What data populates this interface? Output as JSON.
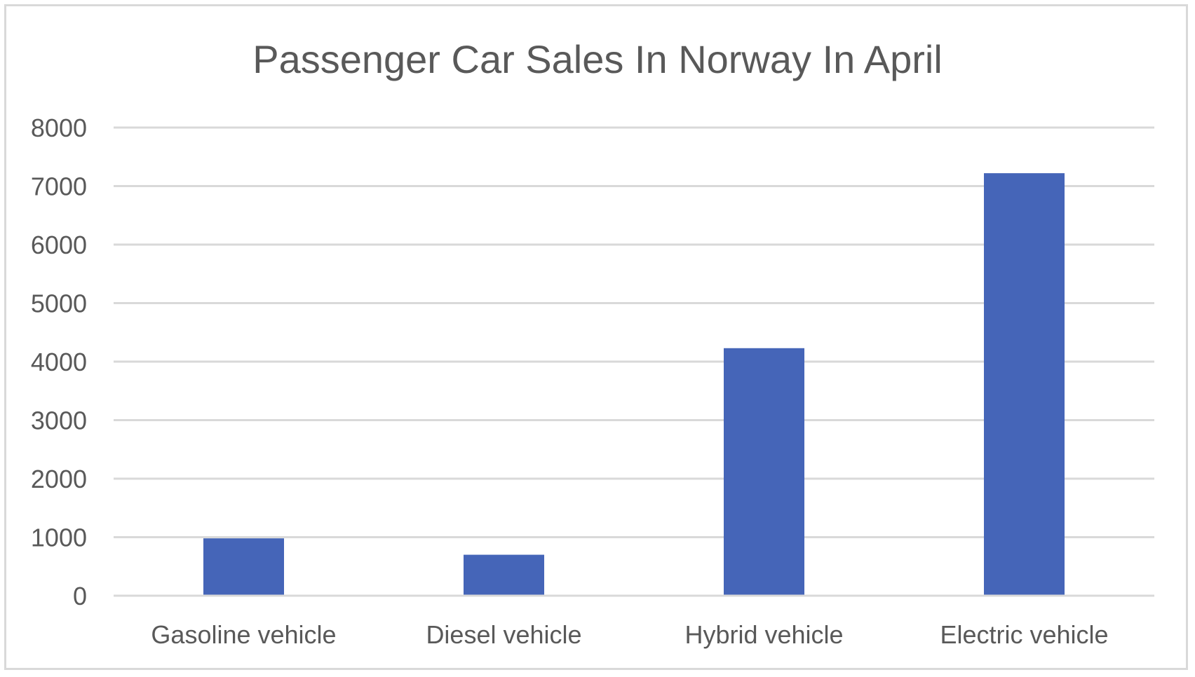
{
  "chart_data": {
    "type": "bar",
    "title": "Passenger Car Sales In Norway In April",
    "xlabel": "",
    "ylabel": "",
    "categories": [
      "Gasoline vehicle",
      "Diesel vehicle",
      "Hybrid vehicle",
      "Electric vehicle"
    ],
    "values": [
      980,
      700,
      4230,
      7220
    ],
    "ylim": [
      0,
      8000
    ],
    "yticks": [
      "0",
      "1000",
      "2000",
      "3000",
      "4000",
      "5000",
      "6000",
      "7000",
      "8000"
    ],
    "grid": true,
    "legend": "none",
    "bar_color": "#4565b8"
  }
}
